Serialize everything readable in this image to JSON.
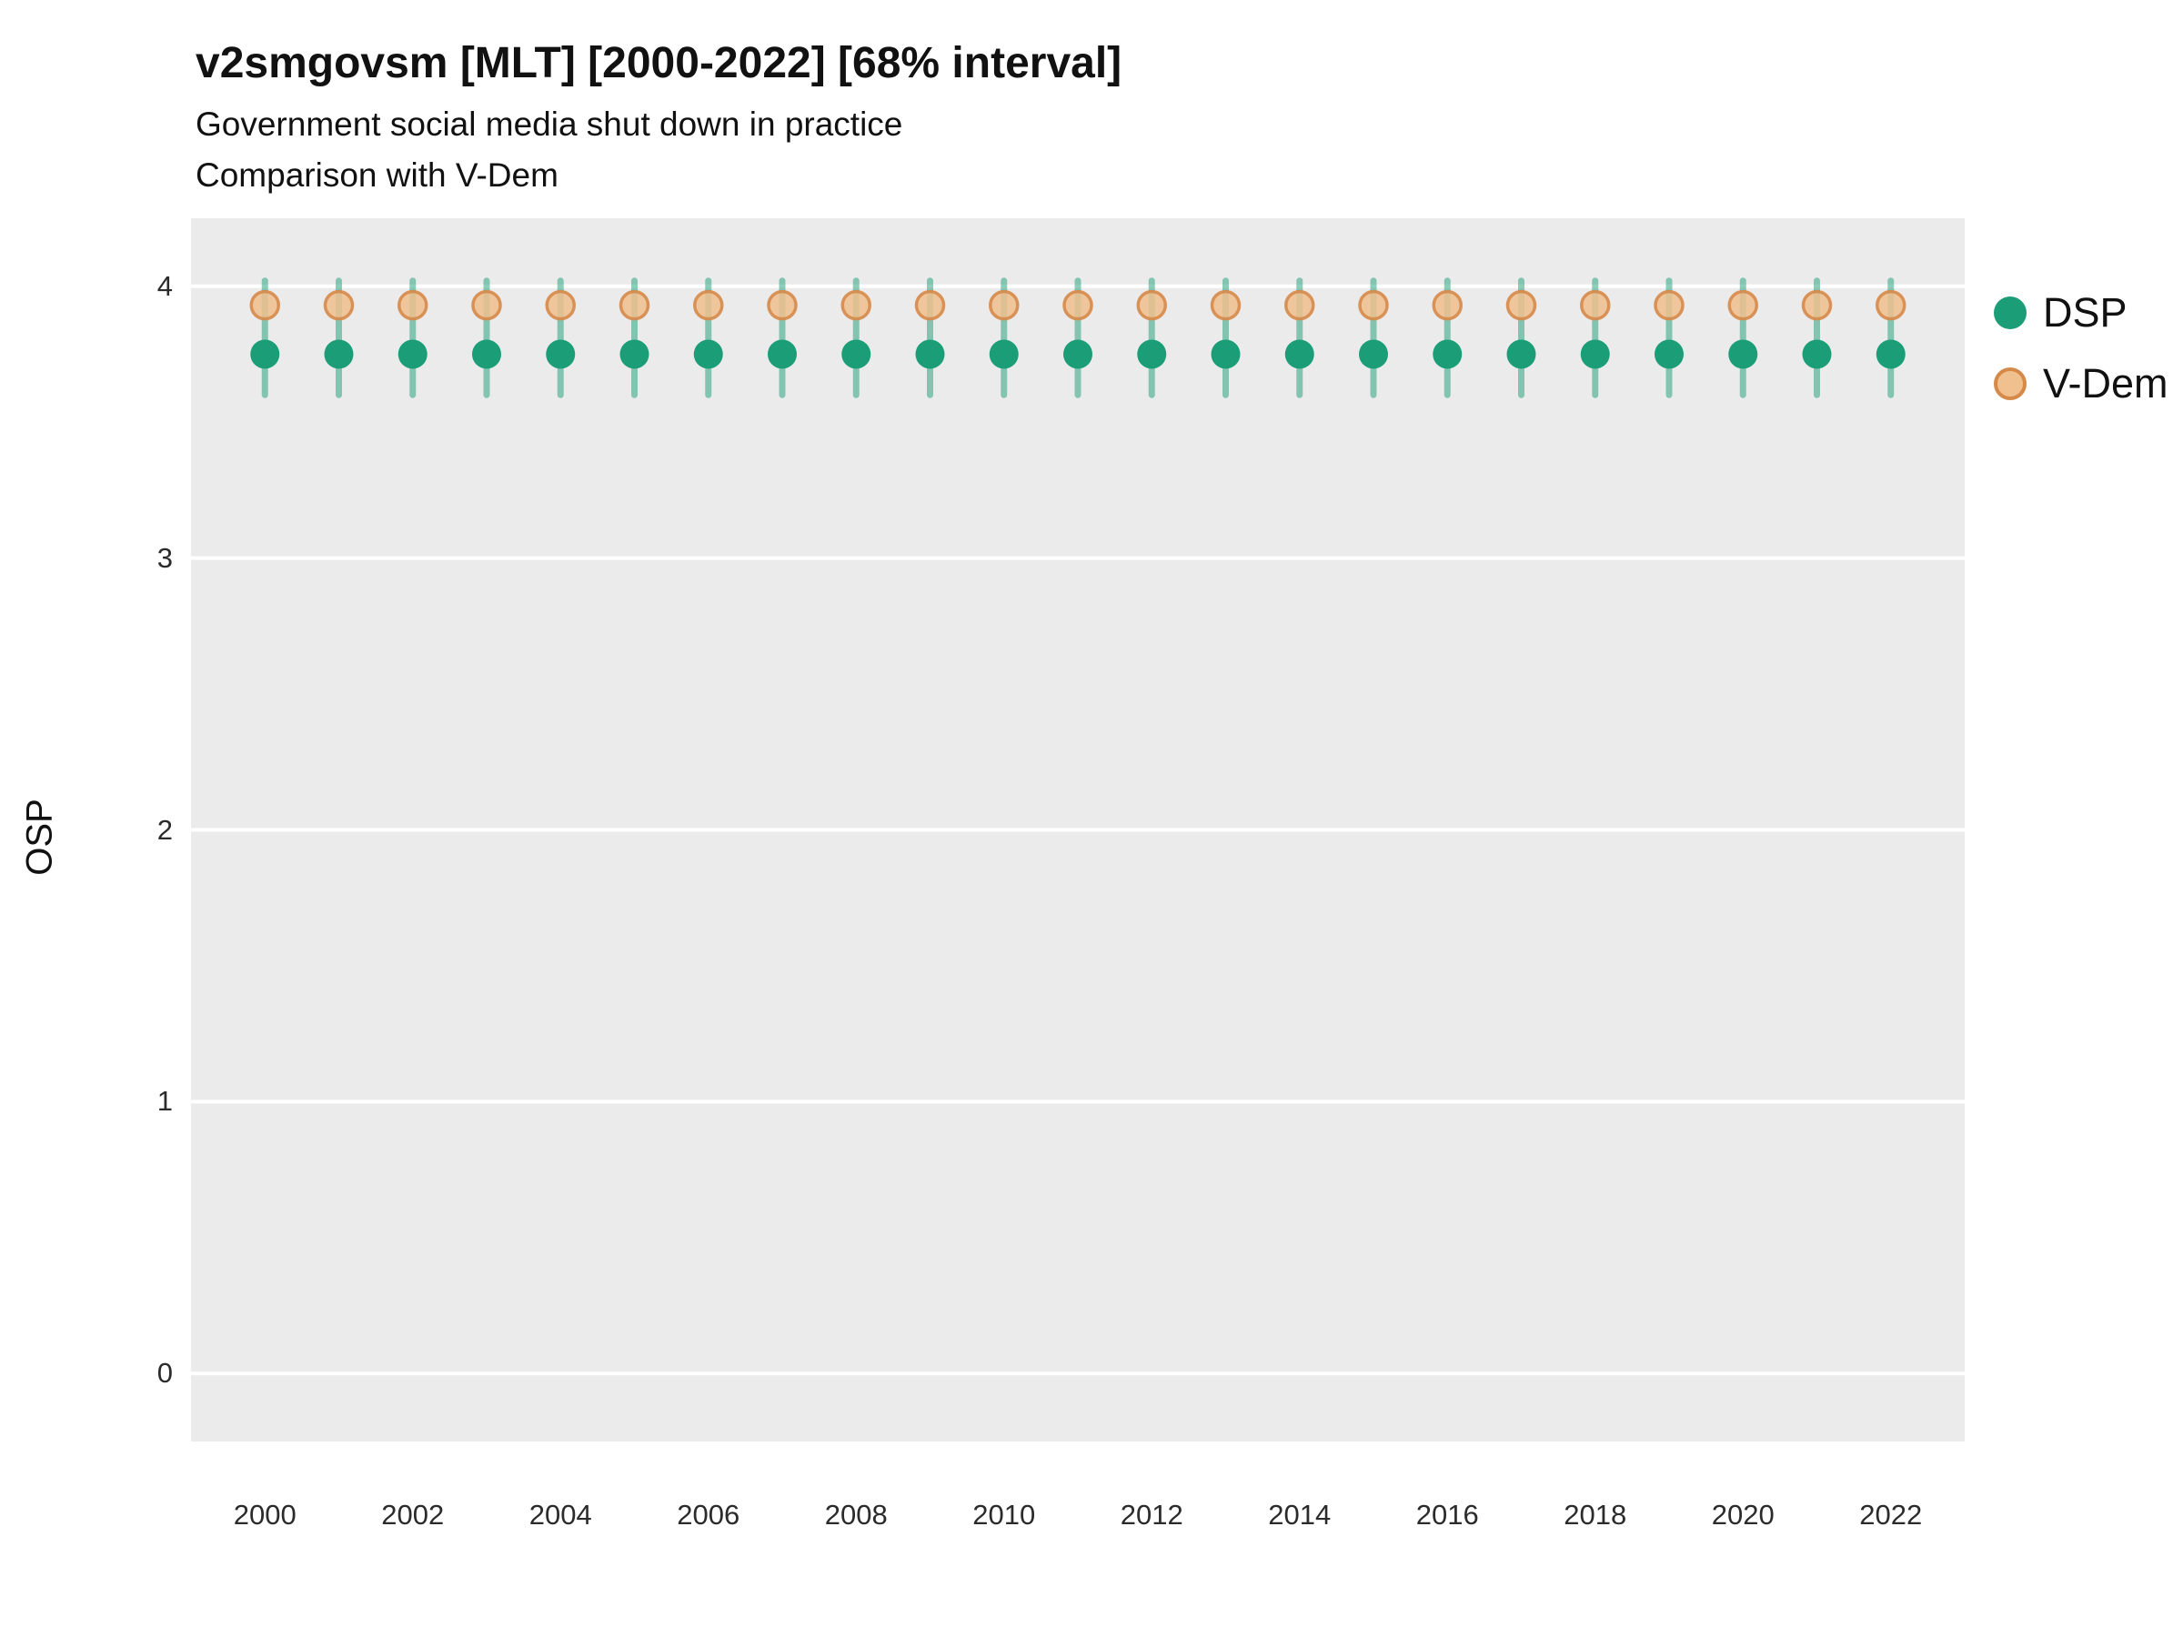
{
  "chart_data": {
    "type": "scatter",
    "title": "v2smgovsm [MLT] [2000-2022] [68% interval]",
    "subtitle1": "Government social media shut down in practice",
    "subtitle2": "Comparison with V-Dem",
    "ylabel": "OSP",
    "xlabel": "",
    "x": [
      2000,
      2001,
      2002,
      2003,
      2004,
      2005,
      2006,
      2007,
      2008,
      2009,
      2010,
      2011,
      2012,
      2013,
      2014,
      2015,
      2016,
      2017,
      2018,
      2019,
      2020,
      2021,
      2022
    ],
    "series": [
      {
        "name": "DSP",
        "color": "#1B9E77",
        "values": [
          3.75,
          3.75,
          3.75,
          3.75,
          3.75,
          3.75,
          3.75,
          3.75,
          3.75,
          3.75,
          3.75,
          3.75,
          3.75,
          3.75,
          3.75,
          3.75,
          3.75,
          3.75,
          3.75,
          3.75,
          3.75,
          3.75,
          3.75
        ],
        "interval_lo": [
          3.6,
          3.6,
          3.6,
          3.6,
          3.6,
          3.6,
          3.6,
          3.6,
          3.6,
          3.6,
          3.6,
          3.6,
          3.6,
          3.6,
          3.6,
          3.6,
          3.6,
          3.6,
          3.6,
          3.6,
          3.6,
          3.6,
          3.6
        ],
        "interval_hi": [
          4.02,
          4.02,
          4.02,
          4.02,
          4.02,
          4.02,
          4.02,
          4.02,
          4.02,
          4.02,
          4.02,
          4.02,
          4.02,
          4.02,
          4.02,
          4.02,
          4.02,
          4.02,
          4.02,
          4.02,
          4.02,
          4.02,
          4.02
        ]
      },
      {
        "name": "V-Dem",
        "fill": "#F0C08E",
        "stroke": "#D68A4A",
        "values": [
          3.93,
          3.93,
          3.93,
          3.93,
          3.93,
          3.93,
          3.93,
          3.93,
          3.93,
          3.93,
          3.93,
          3.93,
          3.93,
          3.93,
          3.93,
          3.93,
          3.93,
          3.93,
          3.93,
          3.93,
          3.93,
          3.93,
          3.93
        ]
      }
    ],
    "xlim": [
      1999,
      2023
    ],
    "ylim": [
      -0.25,
      4.25
    ],
    "x_ticks": [
      2000,
      2002,
      2004,
      2006,
      2008,
      2010,
      2012,
      2014,
      2016,
      2018,
      2020,
      2022
    ],
    "y_ticks": [
      0,
      1,
      2,
      3,
      4
    ],
    "grid": "major-y",
    "grid_color": "#FFFFFF",
    "panel_bg": "#EBEBEB",
    "legend_position": "right",
    "interval_label": "68% interval"
  },
  "legend": {
    "items": [
      {
        "label": "DSP"
      },
      {
        "label": "V-Dem"
      }
    ]
  }
}
